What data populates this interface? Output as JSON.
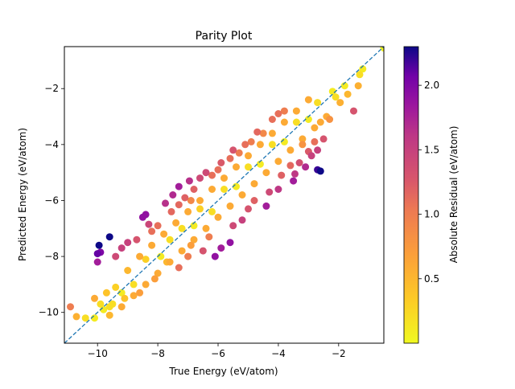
{
  "chart_data": {
    "type": "scatter",
    "title": "Parity Plot",
    "xlabel": "True Energy (eV/atom)",
    "ylabel": "Predicted Energy (eV/atom)",
    "xlim": [
      -11.1,
      -0.5
    ],
    "ylim": [
      -11.1,
      -0.5
    ],
    "xticks": [
      -10,
      -8,
      -6,
      -4,
      -2
    ],
    "yticks": [
      -10,
      -8,
      -6,
      -4,
      -2
    ],
    "grid": false,
    "reference_line": {
      "style": "dashed",
      "color": "#1f77b4",
      "from": [
        -11.1,
        -11.1
      ],
      "to": [
        -0.5,
        -0.5
      ]
    },
    "colorbar": {
      "label": "Absolute Residual (eV/atom)",
      "colormap": "plasma_r",
      "range": [
        0.0,
        2.3
      ],
      "ticks": [
        0.5,
        1.0,
        1.5,
        2.0
      ]
    },
    "series": [
      {
        "points": [
          [
            -10.9,
            -9.8,
            1.0
          ],
          [
            -10.7,
            -10.15,
            0.55
          ],
          [
            -10.4,
            -10.2,
            0.2
          ],
          [
            -10.1,
            -10.2,
            0.1
          ],
          [
            -10.1,
            -9.5,
            0.6
          ],
          [
            -9.9,
            -9.7,
            0.2
          ],
          [
            -9.7,
            -9.3,
            0.4
          ],
          [
            -9.6,
            -9.8,
            0.2
          ],
          [
            -9.5,
            -9.7,
            0.2
          ],
          [
            -9.2,
            -9.3,
            0.1
          ],
          [
            -10.0,
            -8.2,
            1.8
          ],
          [
            -10.0,
            -7.9,
            2.1
          ],
          [
            -9.95,
            -7.6,
            2.3
          ],
          [
            -9.9,
            -7.85,
            2.0
          ],
          [
            -9.6,
            -7.3,
            2.3
          ],
          [
            -9.4,
            -8.0,
            1.4
          ],
          [
            -9.2,
            -7.7,
            1.5
          ],
          [
            -9.0,
            -7.5,
            1.5
          ],
          [
            -8.7,
            -7.4,
            1.3
          ],
          [
            -8.5,
            -6.6,
            1.9
          ],
          [
            -8.4,
            -6.5,
            1.9
          ],
          [
            -8.3,
            -6.85,
            1.45
          ],
          [
            -8.2,
            -7.1,
            1.1
          ],
          [
            -8.0,
            -6.9,
            1.1
          ],
          [
            -7.75,
            -6.1,
            1.65
          ],
          [
            -7.5,
            -5.8,
            1.7
          ],
          [
            -7.55,
            -6.4,
            1.15
          ],
          [
            -7.3,
            -6.15,
            1.15
          ],
          [
            -7.3,
            -5.5,
            1.8
          ],
          [
            -7.1,
            -5.9,
            1.2
          ],
          [
            -6.95,
            -5.3,
            1.65
          ],
          [
            -6.8,
            -5.6,
            1.2
          ],
          [
            -6.9,
            -6.0,
            0.9
          ],
          [
            -6.6,
            -5.2,
            1.4
          ],
          [
            -6.4,
            -5.0,
            1.4
          ],
          [
            -6.2,
            -5.1,
            1.1
          ],
          [
            -6.0,
            -4.9,
            1.1
          ],
          [
            -5.9,
            -4.65,
            1.25
          ],
          [
            -5.6,
            -4.5,
            1.1
          ],
          [
            -5.5,
            -4.2,
            1.3
          ],
          [
            -5.3,
            -4.3,
            1.0
          ],
          [
            -5.1,
            -4.0,
            1.1
          ],
          [
            -4.9,
            -3.9,
            1.0
          ],
          [
            -4.7,
            -3.55,
            1.15
          ],
          [
            -4.5,
            -3.6,
            0.9
          ],
          [
            -4.2,
            -3.1,
            1.1
          ],
          [
            -4.0,
            -2.9,
            1.1
          ],
          [
            -3.8,
            -2.8,
            1.0
          ],
          [
            -8.6,
            -9.3,
            0.7
          ],
          [
            -8.1,
            -8.8,
            0.7
          ],
          [
            -7.7,
            -8.2,
            0.5
          ],
          [
            -7.3,
            -8.4,
            1.1
          ],
          [
            -7.0,
            -8.0,
            1.0
          ],
          [
            -6.9,
            -7.6,
            0.7
          ],
          [
            -6.5,
            -7.8,
            1.3
          ],
          [
            -6.3,
            -7.3,
            1.0
          ],
          [
            -6.1,
            -8.0,
            1.9
          ],
          [
            -5.9,
            -7.7,
            1.8
          ],
          [
            -5.6,
            -7.5,
            1.9
          ],
          [
            -5.5,
            -6.9,
            1.4
          ],
          [
            -5.2,
            -6.7,
            1.5
          ],
          [
            -5.0,
            -6.3,
            1.3
          ],
          [
            -4.8,
            -6.0,
            1.2
          ],
          [
            -4.3,
            -5.7,
            1.4
          ],
          [
            -4.4,
            -6.2,
            1.8
          ],
          [
            -4.0,
            -5.6,
            1.6
          ],
          [
            -3.9,
            -5.1,
            1.2
          ],
          [
            -3.6,
            -4.75,
            1.15
          ],
          [
            -3.5,
            -5.3,
            1.8
          ],
          [
            -3.45,
            -5.05,
            1.6
          ],
          [
            -3.3,
            -4.65,
            1.35
          ],
          [
            -3.1,
            -4.8,
            1.7
          ],
          [
            -2.9,
            -4.4,
            1.5
          ],
          [
            -2.7,
            -4.9,
            2.2
          ],
          [
            -2.6,
            -4.95,
            2.3
          ],
          [
            -3.0,
            -4.25,
            1.25
          ],
          [
            -2.8,
            -3.9,
            1.1
          ],
          [
            -2.7,
            -4.2,
            1.5
          ],
          [
            -2.5,
            -3.8,
            1.3
          ],
          [
            -3.2,
            -4.0,
            0.8
          ],
          [
            -2.6,
            -3.2,
            0.6
          ],
          [
            -2.3,
            -3.1,
            0.8
          ],
          [
            -2.1,
            -2.3,
            0.2
          ],
          [
            -1.95,
            -2.5,
            0.55
          ],
          [
            -1.7,
            -2.2,
            0.5
          ],
          [
            -1.5,
            -2.8,
            1.3
          ],
          [
            -1.35,
            -1.9,
            0.55
          ],
          [
            -1.3,
            -1.5,
            0.2
          ],
          [
            -0.5,
            -0.55,
            0.05
          ],
          [
            -1.2,
            -1.3,
            0.1
          ],
          [
            -1.8,
            -1.9,
            0.1
          ],
          [
            -2.2,
            -2.1,
            0.1
          ],
          [
            -8.8,
            -9.0,
            0.2
          ],
          [
            -9.1,
            -9.5,
            0.4
          ],
          [
            -9.4,
            -9.1,
            0.3
          ],
          [
            -9.8,
            -9.9,
            0.1
          ],
          [
            -8.4,
            -8.1,
            0.3
          ],
          [
            -7.9,
            -8.0,
            0.1
          ],
          [
            -7.6,
            -7.4,
            0.2
          ],
          [
            -7.2,
            -7.0,
            0.2
          ],
          [
            -6.8,
            -6.9,
            0.1
          ],
          [
            -6.6,
            -6.3,
            0.3
          ],
          [
            -6.2,
            -6.4,
            0.2
          ],
          [
            -5.8,
            -5.6,
            0.2
          ],
          [
            -5.4,
            -5.5,
            0.1
          ],
          [
            -5.0,
            -4.8,
            0.2
          ],
          [
            -4.6,
            -4.7,
            0.1
          ],
          [
            -4.2,
            -4.0,
            0.2
          ],
          [
            -3.8,
            -3.9,
            0.1
          ],
          [
            -3.4,
            -3.2,
            0.2
          ],
          [
            -3.0,
            -3.1,
            0.1
          ],
          [
            -2.7,
            -2.5,
            0.2
          ],
          [
            -9.0,
            -8.5,
            0.5
          ],
          [
            -8.6,
            -8.0,
            0.6
          ],
          [
            -8.2,
            -7.6,
            0.6
          ],
          [
            -7.8,
            -7.2,
            0.6
          ],
          [
            -7.4,
            -6.8,
            0.6
          ],
          [
            -7.0,
            -6.4,
            0.6
          ],
          [
            -6.6,
            -6.0,
            0.6
          ],
          [
            -6.2,
            -5.6,
            0.6
          ],
          [
            -5.8,
            -5.2,
            0.6
          ],
          [
            -5.4,
            -4.8,
            0.6
          ],
          [
            -5.0,
            -4.4,
            0.6
          ],
          [
            -4.6,
            -4.0,
            0.6
          ],
          [
            -4.2,
            -3.6,
            0.6
          ],
          [
            -3.8,
            -3.2,
            0.6
          ],
          [
            -3.4,
            -2.8,
            0.6
          ],
          [
            -3.0,
            -2.4,
            0.6
          ],
          [
            -9.6,
            -10.1,
            0.5
          ],
          [
            -9.2,
            -9.8,
            0.6
          ],
          [
            -8.8,
            -9.4,
            0.6
          ],
          [
            -8.4,
            -9.0,
            0.6
          ],
          [
            -8.0,
            -8.6,
            0.6
          ],
          [
            -7.6,
            -8.2,
            0.6
          ],
          [
            -7.2,
            -7.8,
            0.6
          ],
          [
            -6.8,
            -7.4,
            0.6
          ],
          [
            -6.4,
            -7.0,
            0.6
          ],
          [
            -6.0,
            -6.6,
            0.6
          ],
          [
            -5.6,
            -6.2,
            0.6
          ],
          [
            -5.2,
            -5.8,
            0.6
          ],
          [
            -4.8,
            -5.4,
            0.6
          ],
          [
            -4.4,
            -5.0,
            0.6
          ],
          [
            -4.0,
            -4.6,
            0.6
          ],
          [
            -3.6,
            -4.2,
            0.6
          ],
          [
            -3.2,
            -3.8,
            0.6
          ],
          [
            -2.8,
            -3.4,
            0.6
          ],
          [
            -2.4,
            -3.0,
            0.6
          ]
        ]
      }
    ]
  }
}
